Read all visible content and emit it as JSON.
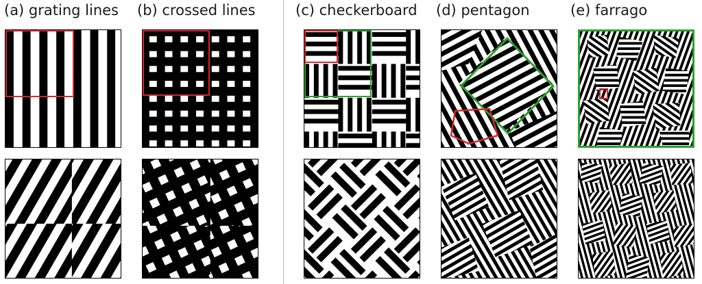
{
  "figure": {
    "panels": [
      {
        "id": "a",
        "label": "(a) grating lines"
      },
      {
        "id": "b",
        "label": "(b) crossed lines"
      },
      {
        "id": "c",
        "label": "(c) checkerboard"
      },
      {
        "id": "d",
        "label": "(d) pentagon"
      },
      {
        "id": "e",
        "label": "(e) farrago"
      }
    ],
    "colors": {
      "highlight_red": "#d62728",
      "highlight_green": "#2ca02c",
      "ink": "#000000",
      "divider": "#aab4c8"
    }
  }
}
